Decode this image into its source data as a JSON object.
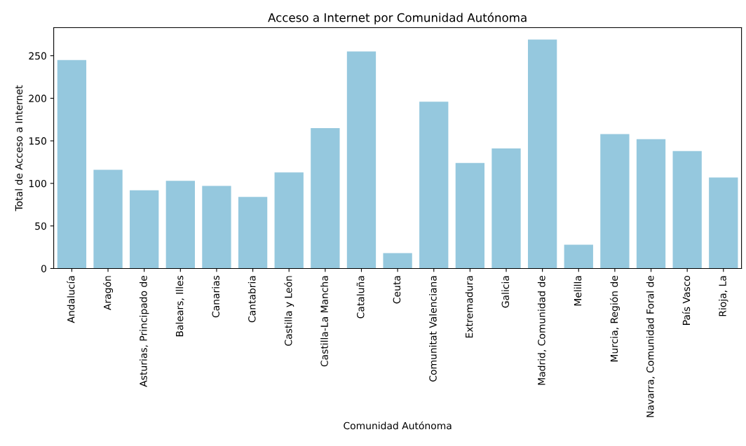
{
  "chart_data": {
    "type": "bar",
    "title": "Acceso a Internet por Comunidad Autónoma",
    "xlabel": "Comunidad Autónoma",
    "ylabel": "Total de Acceso a Internet",
    "categories": [
      "Andalucía",
      "Aragón",
      "Asturias, Principado de",
      "Balears, Illes",
      "Canarias",
      "Cantabria",
      "Castilla y León",
      "Castilla-La Mancha",
      "Cataluña",
      "Ceuta",
      "Comunitat Valenciana",
      "Extremadura",
      "Galicia",
      "Madrid, Comunidad de",
      "Melilla",
      "Murcia, Región de",
      "Navarra, Comunidad Foral de",
      "País Vasco",
      "Rioja, La"
    ],
    "values": [
      245,
      116,
      92,
      103,
      97,
      84,
      113,
      165,
      255,
      18,
      196,
      124,
      141,
      269,
      28,
      158,
      152,
      138,
      107
    ],
    "color": "#95c8de",
    "ylim": [
      0,
      283
    ],
    "yticks": [
      0,
      50,
      100,
      150,
      200,
      250
    ],
    "grid": false,
    "legend": false
  }
}
